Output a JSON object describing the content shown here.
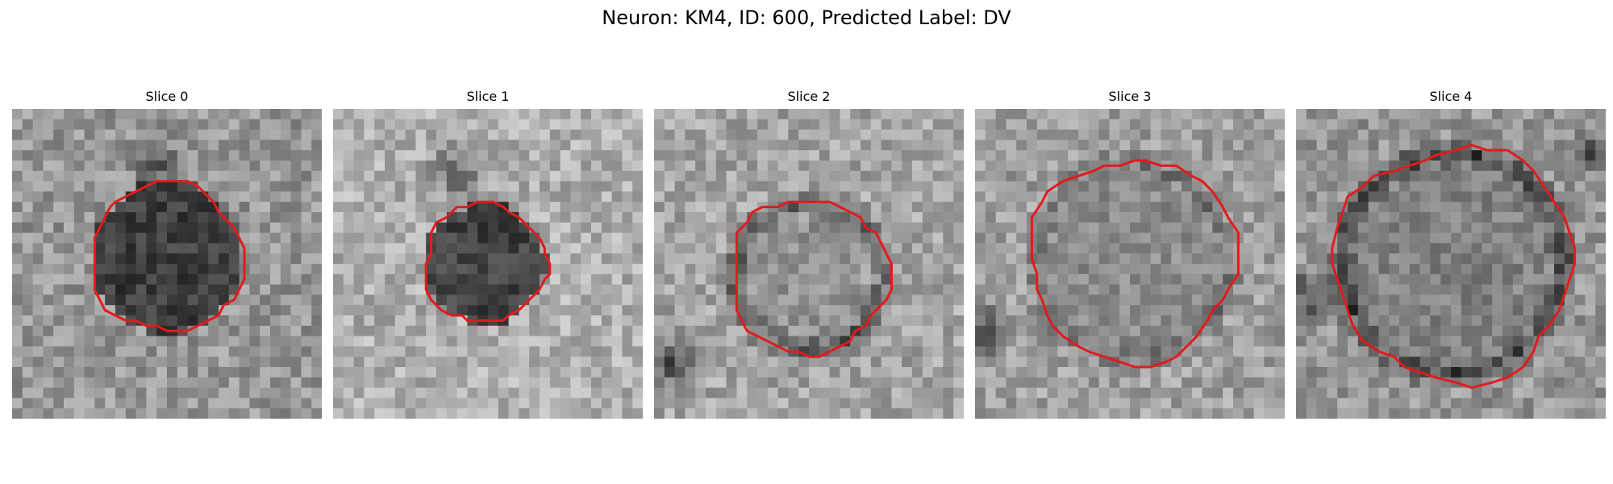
{
  "figure": {
    "title": "Neuron: KM4, ID: 600, Predicted Label: DV"
  },
  "colors": {
    "contour": "#e41a1c",
    "background": "#ffffff"
  },
  "panels": [
    {
      "title": "Slice 0",
      "cell": "dark-filled"
    },
    {
      "title": "Slice 1",
      "cell": "dark-filled-small"
    },
    {
      "title": "Slice 2",
      "cell": "ring"
    },
    {
      "title": "Slice 3",
      "cell": "light-interior"
    },
    {
      "title": "Slice 4",
      "cell": "ring-large"
    }
  ]
}
